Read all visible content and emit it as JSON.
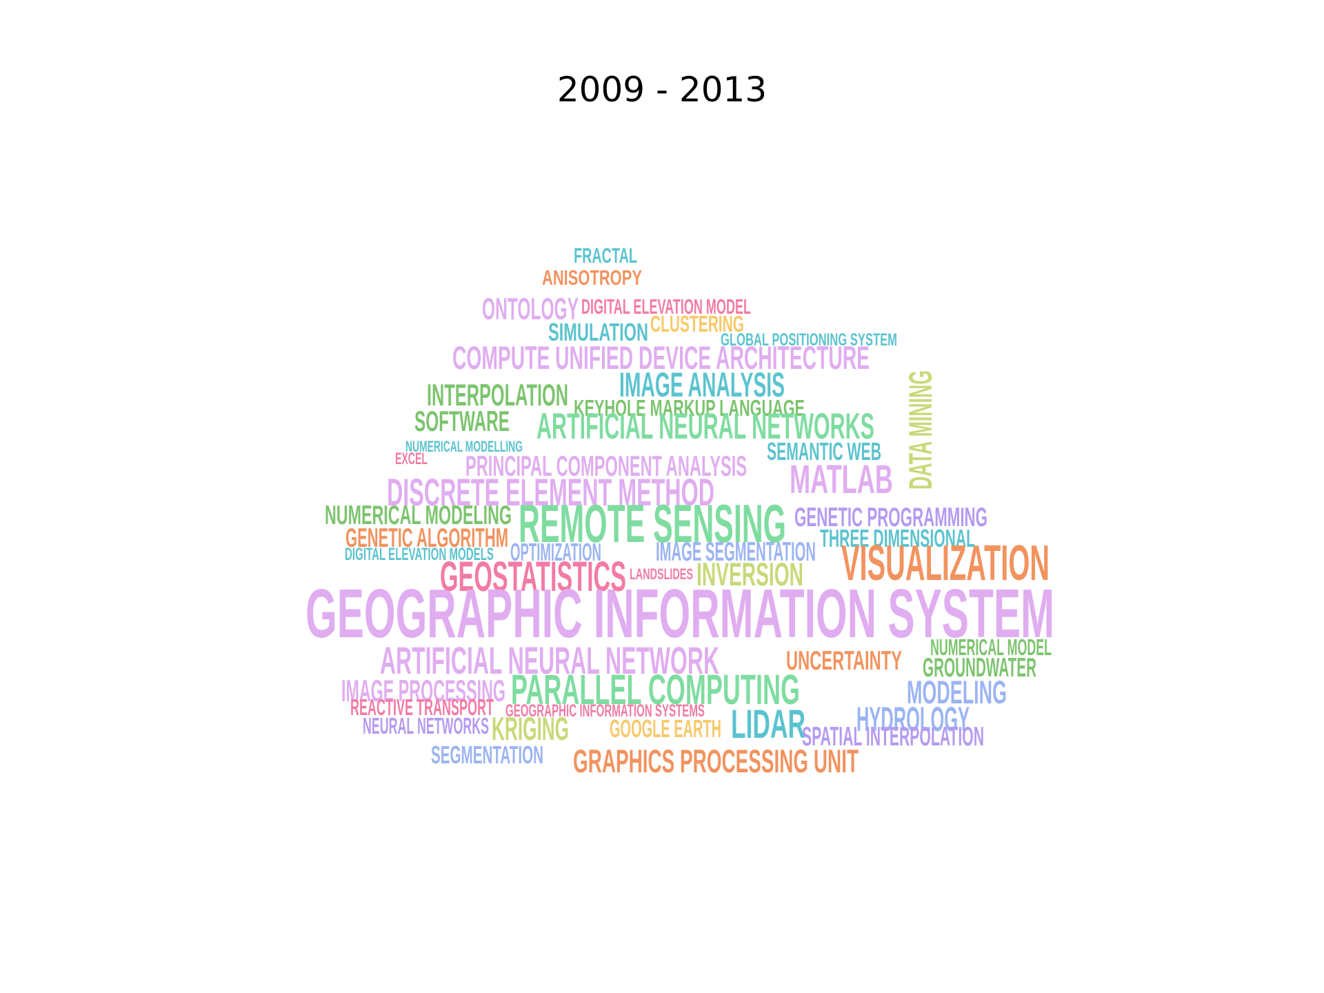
{
  "title": "2009 - 2013",
  "palette": {
    "teal": "#5bc3cf",
    "orange": "#f2935f",
    "purple": "#e0adf0",
    "yellow": "#f7c96a",
    "green": "#7cc46e",
    "pink": "#f27ba5",
    "lime": "#c8d979",
    "blue": "#9bb4f2",
    "mint": "#7fdca0",
    "lavender": "#b59af0"
  },
  "words": [
    {
      "text": "FRACTAL",
      "color": "#5bc3cf"
    },
    {
      "text": "ANISOTROPY",
      "color": "#f2935f"
    },
    {
      "text": "ONTOLOGY",
      "color": "#e0adf0"
    },
    {
      "text": "DIGITAL ELEVATION MODEL",
      "color": "#f27ba5"
    },
    {
      "text": "SIMULATION",
      "color": "#5bc3cf"
    },
    {
      "text": "CLUSTERING",
      "color": "#f7c96a"
    },
    {
      "text": "GLOBAL POSITIONING SYSTEM",
      "color": "#5bc3cf"
    },
    {
      "text": "COMPUTE UNIFIED DEVICE ARCHITECTURE",
      "color": "#e0adf0"
    },
    {
      "text": "IMAGE ANALYSIS",
      "color": "#5bc3cf"
    },
    {
      "text": "DATA MINING",
      "color": "#c8d979"
    },
    {
      "text": "INTERPOLATION",
      "color": "#7cc46e"
    },
    {
      "text": "KEYHOLE MARKUP LANGUAGE",
      "color": "#7cc46e"
    },
    {
      "text": "SOFTWARE",
      "color": "#7cc46e"
    },
    {
      "text": "ARTIFICIAL NEURAL NETWORKS",
      "color": "#7fdca0"
    },
    {
      "text": "NUMERICAL MODELLING",
      "color": "#5bc3cf"
    },
    {
      "text": "SEMANTIC WEB",
      "color": "#5bc3cf"
    },
    {
      "text": "EXCEL",
      "color": "#f27ba5"
    },
    {
      "text": "PRINCIPAL COMPONENT ANALYSIS",
      "color": "#e0adf0"
    },
    {
      "text": "MATLAB",
      "color": "#e0adf0"
    },
    {
      "text": "DISCRETE ELEMENT METHOD",
      "color": "#e0adf0"
    },
    {
      "text": "NUMERICAL MODELING",
      "color": "#7cc46e"
    },
    {
      "text": "REMOTE SENSING",
      "color": "#7fdca0"
    },
    {
      "text": "GENETIC PROGRAMMING",
      "color": "#b59af0"
    },
    {
      "text": "GENETIC ALGORITHM",
      "color": "#f2935f"
    },
    {
      "text": "THREE DIMENSIONAL",
      "color": "#5bc3cf"
    },
    {
      "text": "DIGITAL ELEVATION MODELS",
      "color": "#5bc3cf"
    },
    {
      "text": "OPTIMIZATION",
      "color": "#9bb4f2"
    },
    {
      "text": "IMAGE SEGMENTATION",
      "color": "#9bb4f2"
    },
    {
      "text": "VISUALIZATION",
      "color": "#f2935f"
    },
    {
      "text": "GEOSTATISTICS",
      "color": "#f27ba5"
    },
    {
      "text": "LANDSLIDES",
      "color": "#f27ba5"
    },
    {
      "text": "INVERSION",
      "color": "#c8d979"
    },
    {
      "text": "GEOGRAPHIC INFORMATION SYSTEM",
      "color": "#e0adf0"
    },
    {
      "text": "NUMERICAL MODEL",
      "color": "#7cc46e"
    },
    {
      "text": "ARTIFICIAL NEURAL NETWORK",
      "color": "#e0adf0"
    },
    {
      "text": "UNCERTAINTY",
      "color": "#f2935f"
    },
    {
      "text": "GROUNDWATER",
      "color": "#7cc46e"
    },
    {
      "text": "IMAGE PROCESSING",
      "color": "#e0adf0"
    },
    {
      "text": "PARALLEL COMPUTING",
      "color": "#7fdca0"
    },
    {
      "text": "MODELING",
      "color": "#9bb4f2"
    },
    {
      "text": "REACTIVE TRANSPORT",
      "color": "#f27ba5"
    },
    {
      "text": "GEOGRAPHIC INFORMATION SYSTEMS",
      "color": "#f27ba5"
    },
    {
      "text": "HYDROLOGY",
      "color": "#9bb4f2"
    },
    {
      "text": "NEURAL NETWORKS",
      "color": "#b59af0"
    },
    {
      "text": "KRIGING",
      "color": "#c8d979"
    },
    {
      "text": "GOOGLE EARTH",
      "color": "#f7c96a"
    },
    {
      "text": "LIDAR",
      "color": "#5bc3cf"
    },
    {
      "text": "SPATIAL INTERPOLATION",
      "color": "#b59af0"
    },
    {
      "text": "SEGMENTATION",
      "color": "#9bb4f2"
    },
    {
      "text": "GRAPHICS PROCESSING UNIT",
      "color": "#f2935f"
    }
  ]
}
